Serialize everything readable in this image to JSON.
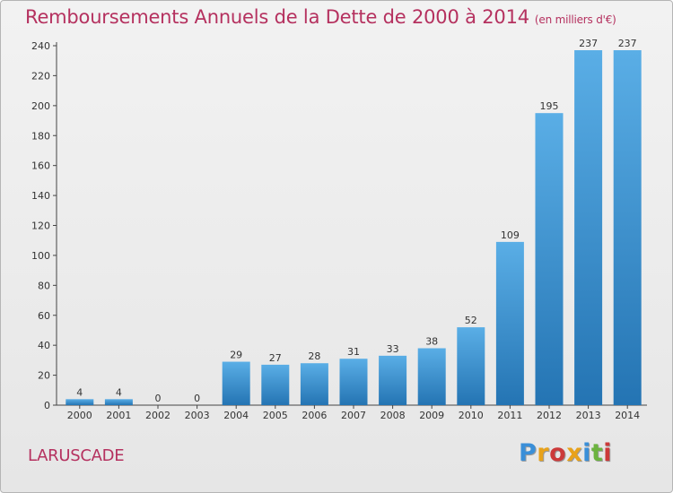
{
  "header": {
    "title": "Remboursements Annuels de la Dette de 2000 à 2014",
    "unit": "(en milliers d'€)"
  },
  "footer": {
    "commune": "LARUSCADE",
    "logo_letters": [
      "P",
      "r",
      "o",
      "x",
      "i",
      "t",
      "i"
    ]
  },
  "colors": {
    "title": "#b5315f",
    "bar_top": "#5aaee6",
    "bar_bottom": "#2474b3",
    "logo": [
      "#3a8fd8",
      "#e8a21a",
      "#cc3a3a",
      "#e8a21a",
      "#3a8fd8",
      "#6cb33f",
      "#cc3a3a"
    ]
  },
  "chart_data": {
    "type": "bar",
    "title": "Remboursements Annuels de la Dette de 2000 à 2014",
    "xlabel": "",
    "ylabel": "",
    "categories": [
      "2000",
      "2001",
      "2002",
      "2003",
      "2004",
      "2005",
      "2006",
      "2007",
      "2008",
      "2009",
      "2010",
      "2011",
      "2012",
      "2013",
      "2014"
    ],
    "values": [
      4,
      4,
      0,
      0,
      29,
      27,
      28,
      31,
      33,
      38,
      52,
      109,
      195,
      237,
      237
    ],
    "yticks": [
      0,
      20,
      40,
      60,
      80,
      100,
      120,
      140,
      160,
      180,
      200,
      220,
      240
    ],
    "ylim": [
      0,
      240
    ],
    "grid": false
  }
}
